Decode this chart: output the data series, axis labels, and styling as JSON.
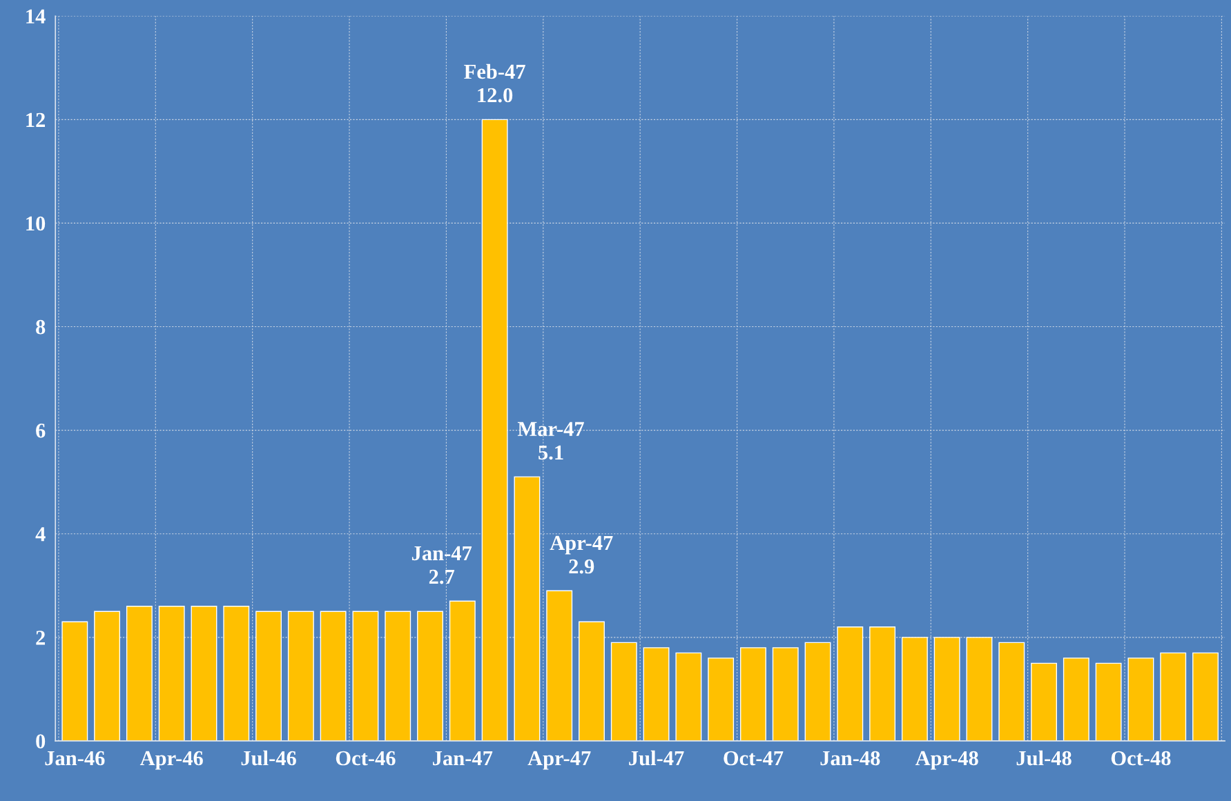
{
  "chart_data": {
    "type": "bar",
    "categories": [
      "Jan-46",
      null,
      null,
      "Apr-46",
      null,
      null,
      "Jul-46",
      null,
      null,
      "Oct-46",
      null,
      null,
      "Jan-47",
      null,
      null,
      "Apr-47",
      null,
      null,
      "Jul-47",
      null,
      null,
      "Oct-47",
      null,
      null,
      "Jan-48",
      null,
      null,
      "Apr-48",
      null,
      null,
      "Jul-48",
      null,
      null,
      "Oct-48",
      null,
      null
    ],
    "values": [
      2.3,
      2.5,
      2.6,
      2.6,
      2.6,
      2.6,
      2.5,
      2.5,
      2.5,
      2.5,
      2.5,
      2.5,
      2.7,
      12.0,
      5.1,
      2.9,
      2.3,
      1.9,
      1.8,
      1.7,
      1.6,
      1.8,
      1.8,
      1.9,
      2.2,
      2.2,
      2.0,
      2.0,
      2.0,
      1.9,
      1.5,
      1.6,
      1.5,
      1.6,
      1.7,
      1.7
    ],
    "value_labels": [
      null,
      null,
      null,
      null,
      null,
      null,
      null,
      null,
      null,
      null,
      null,
      null,
      "Jan-47\n2.7",
      "Feb-47\n12.0",
      "Mar-47\n5.1",
      "Apr-47\n2.9",
      null,
      null,
      null,
      null,
      null,
      null,
      null,
      null,
      null,
      null,
      null,
      null,
      null,
      null,
      null,
      null,
      null,
      null,
      null,
      null
    ],
    "color": "#ffc000",
    "ylim": [
      0,
      14
    ],
    "yticks": [
      0,
      2,
      4,
      6,
      8,
      10,
      12,
      14
    ],
    "grid": true
  }
}
